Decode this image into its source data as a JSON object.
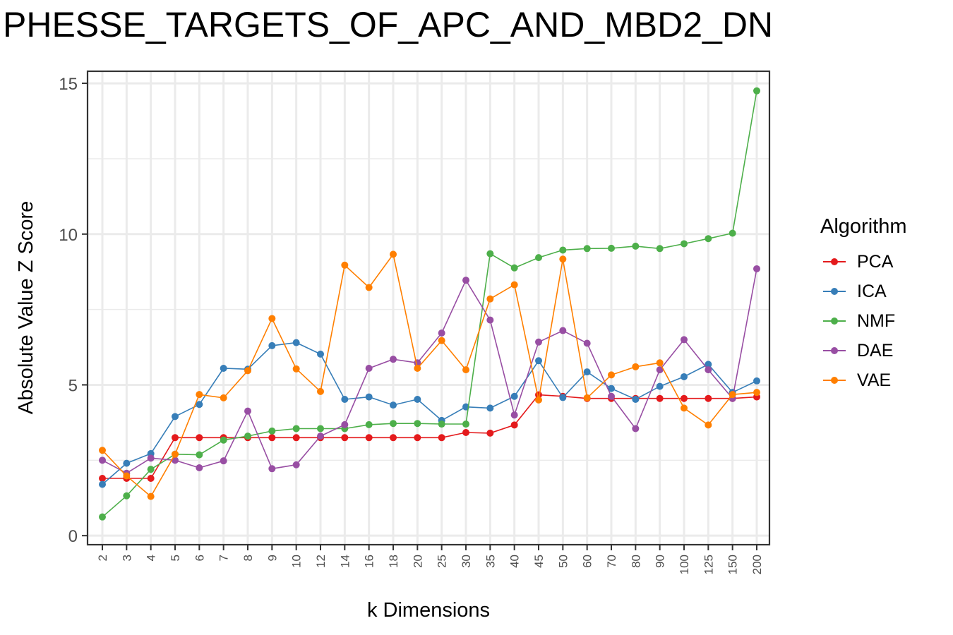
{
  "chart_data": {
    "type": "line",
    "title": "PHESSE_TARGETS_OF_APC_AND_MBD2_DN",
    "xlabel": "k Dimensions",
    "ylabel": "Absolute Value Z Score",
    "categories": [
      "2",
      "3",
      "4",
      "5",
      "6",
      "7",
      "8",
      "9",
      "10",
      "12",
      "14",
      "16",
      "18",
      "20",
      "25",
      "30",
      "35",
      "40",
      "45",
      "50",
      "60",
      "70",
      "80",
      "90",
      "100",
      "125",
      "150",
      "200"
    ],
    "ylim": [
      -0.3,
      15.4
    ],
    "yticks": [
      0,
      5,
      10,
      15
    ],
    "grid": true,
    "legend_title": "Algorithm",
    "legend_position": "right",
    "series": [
      {
        "name": "PCA",
        "color": "#e41a1c",
        "values": [
          1.9,
          1.9,
          1.9,
          3.25,
          3.25,
          3.25,
          3.25,
          3.25,
          3.25,
          3.25,
          3.25,
          3.25,
          3.25,
          3.25,
          3.25,
          3.42,
          3.4,
          3.67,
          4.67,
          4.62,
          4.55,
          4.55,
          4.55,
          4.55,
          4.55,
          4.55,
          4.55,
          4.6
        ]
      },
      {
        "name": "ICA",
        "color": "#377eb8",
        "values": [
          1.7,
          2.4,
          2.72,
          3.95,
          4.35,
          5.55,
          5.52,
          6.3,
          6.4,
          6.02,
          4.52,
          4.6,
          4.33,
          4.52,
          3.82,
          4.27,
          4.23,
          4.62,
          5.8,
          4.58,
          5.43,
          4.88,
          4.52,
          4.95,
          5.27,
          5.68,
          4.75,
          5.13
        ]
      },
      {
        "name": "NMF",
        "color": "#4daf4a",
        "values": [
          0.62,
          1.32,
          2.2,
          2.7,
          2.68,
          3.17,
          3.3,
          3.47,
          3.55,
          3.55,
          3.55,
          3.68,
          3.72,
          3.72,
          3.7,
          3.7,
          9.35,
          8.88,
          9.22,
          9.47,
          9.52,
          9.53,
          9.6,
          9.52,
          9.68,
          9.85,
          10.03,
          14.75
        ]
      },
      {
        "name": "DAE",
        "color": "#984ea3",
        "values": [
          2.5,
          2.07,
          2.57,
          2.5,
          2.25,
          2.48,
          4.13,
          2.22,
          2.35,
          3.3,
          3.68,
          5.55,
          5.85,
          5.73,
          6.72,
          8.47,
          7.15,
          4.0,
          6.42,
          6.8,
          6.38,
          4.62,
          3.55,
          5.5,
          6.5,
          5.5,
          4.55,
          8.85
        ]
      },
      {
        "name": "VAE",
        "color": "#ff7f00",
        "values": [
          2.83,
          1.98,
          1.3,
          2.7,
          4.68,
          4.57,
          5.47,
          7.2,
          5.53,
          4.78,
          8.97,
          8.23,
          9.33,
          5.55,
          6.47,
          5.5,
          7.85,
          8.32,
          4.5,
          9.17,
          4.57,
          5.33,
          5.6,
          5.73,
          4.23,
          3.67,
          4.68,
          4.75
        ]
      }
    ]
  }
}
